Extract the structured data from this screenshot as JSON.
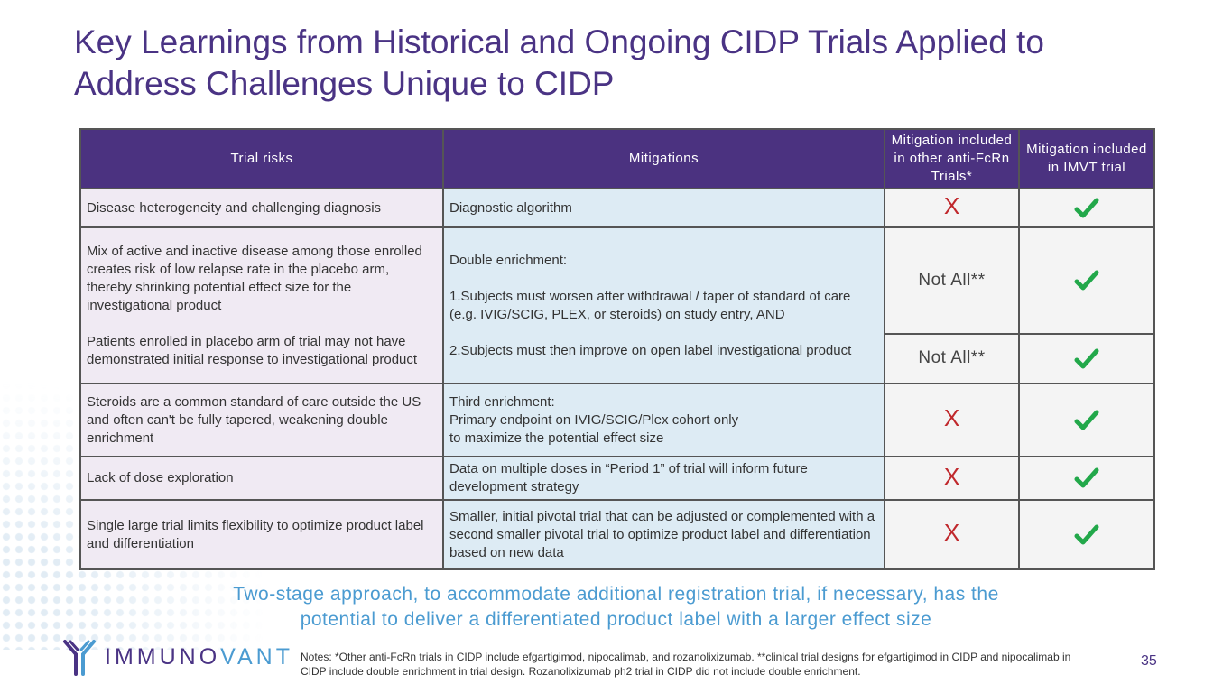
{
  "title": {
    "line1": "Key Learnings from Historical and Ongoing CIDP Trials Applied to",
    "line2": "Address Challenges Unique to CIDP"
  },
  "table": {
    "headers": {
      "risks": "Trial risks",
      "mitigations": "Mitigations",
      "other": "Mitigation included in other anti-FcRn Trials*",
      "imvt": "Mitigation included in IMVT trial"
    },
    "rows": [
      {
        "risk": [
          "Disease heterogeneity and challenging diagnosis"
        ],
        "mitigation": [
          "Diagnostic algorithm"
        ],
        "other": "X"
      },
      {
        "risk": [
          "Mix of active and inactive disease among those enrolled creates risk of low relapse rate in the placebo arm, thereby shrinking potential effect size for the investigational product",
          "Patients enrolled in placebo arm of trial may not have demonstrated initial response to investigational product"
        ],
        "mitigation": [
          "Double enrichment:",
          "1.Subjects must worsen after withdrawal / taper of standard of care (e.g. IVIG/SCIG, PLEX, or steroids) on study entry, AND",
          "2.Subjects must then improve on open label investigational product"
        ],
        "other_a": "Not All**",
        "other_b": "Not All**"
      },
      {
        "risk": [
          "Steroids are a common standard of care outside the US and often can't be fully tapered, weakening double enrichment"
        ],
        "mitigation": [
          "Third enrichment:",
          "Primary endpoint on IVIG/SCIG/Plex cohort only",
          "to maximize the potential effect size"
        ],
        "other": "X"
      },
      {
        "risk": [
          "Lack of dose exploration"
        ],
        "mitigation": [
          "Data on multiple doses in “Period 1” of trial will inform future development strategy"
        ],
        "other": "X"
      },
      {
        "risk": [
          "Single large trial limits flexibility to optimize product label and differentiation"
        ],
        "mitigation": [
          "Smaller, initial pivotal trial that can be adjusted or complemented with a second smaller pivotal trial to optimize product label and differentiation based on new data"
        ],
        "other": "X"
      }
    ],
    "imvt_icon": "checkmark-icon",
    "colors": {
      "check": "#22a84a",
      "x": "#c0282c",
      "header_bg": "#4b3280"
    }
  },
  "tagline": {
    "line1": "Two-stage approach, to accommodate additional registration trial, if necessary, has the",
    "line2": "potential to deliver a differentiated product label with a larger effect size"
  },
  "logo": {
    "prefix": "IMMUNO",
    "suffix": "VANT",
    "icon": "antibody-icon"
  },
  "notes": "Notes: *Other anti-FcRn trials in CIDP include efgartigimod, nipocalimab, and rozanolixizumab. **clinical trial designs for efgartigimod in CIDP and nipocalimab in CIDP include double enrichment in trial design. Rozanolixizumab ph2 trial in CIDP did not include double enrichment.",
  "page_number": "35"
}
